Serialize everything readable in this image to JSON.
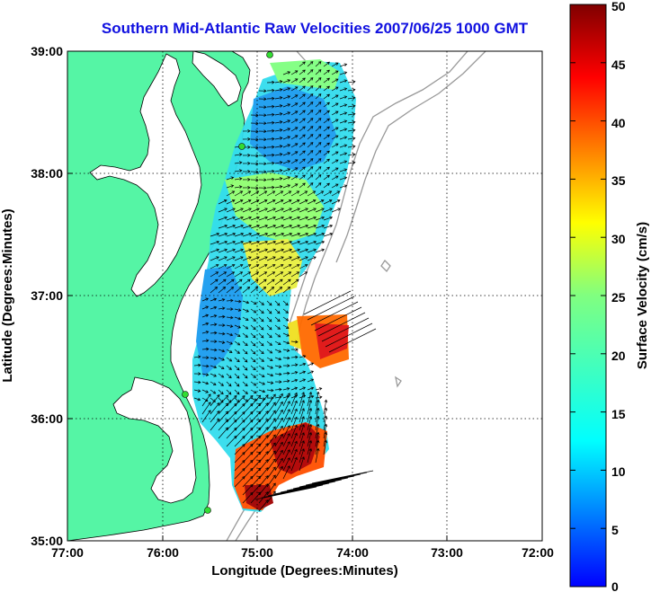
{
  "title": "Southern Mid-Atlantic Raw Velocities 2007/06/25 1000 GMT",
  "xlabel": "Longitude (Degrees:Minutes)",
  "ylabel": "Latitude (Degrees:Minutes)",
  "x_ticks": [
    "77:00",
    "76:00",
    "75:00",
    "74:00",
    "73:00",
    "72:00"
  ],
  "y_ticks": [
    "39:00",
    "38:00",
    "37:00",
    "36:00",
    "35:00"
  ],
  "colorbar": {
    "label": "Surface Velocity (cm/s)",
    "ticks": [
      "0",
      "5",
      "10",
      "15",
      "20",
      "25",
      "30",
      "35",
      "40",
      "45",
      "50"
    ],
    "range": [
      0,
      50
    ],
    "colormap": "jet"
  },
  "colors": {
    "land": "#55f5a5",
    "title": "#1010e0",
    "station": "#33dd33",
    "bathymetry": "#999999"
  },
  "stations_lonlat": [
    [
      -74.88,
      38.97
    ],
    [
      -75.07,
      38.22
    ],
    [
      -75.65,
      36.18
    ],
    [
      -75.5,
      35.25
    ]
  ]
}
